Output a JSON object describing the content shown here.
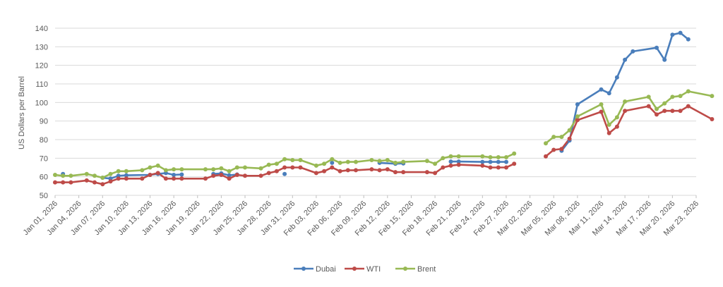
{
  "chart_data": {
    "type": "line",
    "title": "",
    "xlabel": "",
    "ylabel": "US Dollars per Barrel",
    "ylim": [
      50,
      140
    ],
    "yticks": [
      50,
      60,
      70,
      80,
      90,
      100,
      110,
      120,
      130,
      140
    ],
    "xlim": [
      "2026-01-01",
      "2026-03-23"
    ],
    "xtick_labels": [
      "Jan 01, 2026",
      "Jan 04, 2026",
      "Jan 07, 2026",
      "Jan 10, 2026",
      "Jan 13, 2026",
      "Jan 16, 2026",
      "Jan 19, 2026",
      "Jan 22, 2026",
      "Jan 25, 2026",
      "Jan 28, 2026",
      "Jan 31, 2026",
      "Feb 03, 2026",
      "Feb 06, 2026",
      "Feb 09, 2026",
      "Feb 12, 2026",
      "Feb 15, 2026",
      "Feb 18, 2026",
      "Feb 21, 2026",
      "Feb 24, 2026",
      "Feb 27, 2026",
      "Mar 02, 2026",
      "Mar 05, 2026",
      "Mar 08, 2026",
      "Mar 11, 2026",
      "Mar 14, 2026",
      "Mar 17, 2026",
      "Mar 20, 2026",
      "Mar 23, 2026"
    ],
    "grid": "horizontal",
    "legend_position": "bottom",
    "series": [
      {
        "name": "Dubai",
        "color": "#4a7ebb",
        "points": [
          [
            "2026-01-02",
            61.5
          ],
          [
            "2026-01-07",
            59.5
          ],
          [
            "2026-01-08",
            59.0
          ],
          [
            "2026-01-09",
            60.5
          ],
          [
            "2026-01-10",
            60.8
          ],
          [
            "2026-01-13",
            61.0
          ],
          [
            "2026-01-14",
            61.5
          ],
          [
            "2026-01-15",
            62.0
          ],
          [
            "2026-01-16",
            61.0
          ],
          [
            "2026-01-17",
            61.2
          ],
          [
            "2026-01-21",
            61.5
          ],
          [
            "2026-01-22",
            61.8
          ],
          [
            "2026-01-23",
            60.8
          ],
          [
            "2026-01-24",
            61.2
          ],
          [
            "2026-01-30",
            61.5
          ],
          [
            "2026-02-05",
            67.5
          ],
          [
            "2026-02-11",
            67.5
          ],
          [
            "2026-02-13",
            67.0
          ],
          [
            "2026-02-14",
            67.2
          ],
          [
            "2026-02-20",
            68.2
          ],
          [
            "2026-02-21",
            68.2
          ],
          [
            "2026-02-24",
            68.0
          ],
          [
            "2026-02-25",
            68.0
          ],
          [
            "2026-02-26",
            68.0
          ],
          [
            "2026-02-27",
            68.0
          ],
          [
            "2026-03-06",
            74.0
          ],
          [
            "2026-03-07",
            79.5
          ],
          [
            "2026-03-08",
            99.0
          ],
          [
            "2026-03-11",
            107.0
          ],
          [
            "2026-03-12",
            105.0
          ],
          [
            "2026-03-13",
            113.5
          ],
          [
            "2026-03-14",
            123.0
          ],
          [
            "2026-03-15",
            127.5
          ],
          [
            "2026-03-18",
            129.5
          ],
          [
            "2026-03-19",
            123.0
          ],
          [
            "2026-03-20",
            136.5
          ],
          [
            "2026-03-21",
            137.5
          ],
          [
            "2026-03-22",
            134.0
          ]
        ]
      },
      {
        "name": "WTI",
        "color": "#be4b48",
        "points": [
          [
            "2026-01-01",
            57.0
          ],
          [
            "2026-01-02",
            57.0
          ],
          [
            "2026-01-03",
            57.0
          ],
          [
            "2026-01-05",
            58.0
          ],
          [
            "2026-01-06",
            57.0
          ],
          [
            "2026-01-07",
            56.0
          ],
          [
            "2026-01-08",
            57.5
          ],
          [
            "2026-01-09",
            59.0
          ],
          [
            "2026-01-10",
            59.0
          ],
          [
            "2026-01-12",
            59.0
          ],
          [
            "2026-01-13",
            61.0
          ],
          [
            "2026-01-14",
            62.0
          ],
          [
            "2026-01-15",
            59.0
          ],
          [
            "2026-01-16",
            59.0
          ],
          [
            "2026-01-17",
            59.0
          ],
          [
            "2026-01-20",
            59.0
          ],
          [
            "2026-01-21",
            60.5
          ],
          [
            "2026-01-22",
            61.0
          ],
          [
            "2026-01-23",
            59.0
          ],
          [
            "2026-01-24",
            61.0
          ],
          [
            "2026-01-25",
            60.5
          ],
          [
            "2026-01-27",
            60.5
          ],
          [
            "2026-01-28",
            62.0
          ],
          [
            "2026-01-29",
            63.0
          ],
          [
            "2026-01-30",
            65.0
          ],
          [
            "2026-01-31",
            65.0
          ],
          [
            "2026-02-01",
            65.0
          ],
          [
            "2026-02-03",
            62.0
          ],
          [
            "2026-02-04",
            63.0
          ],
          [
            "2026-02-05",
            65.0
          ],
          [
            "2026-02-06",
            63.0
          ],
          [
            "2026-02-07",
            63.5
          ],
          [
            "2026-02-08",
            63.5
          ],
          [
            "2026-02-10",
            64.0
          ],
          [
            "2026-02-11",
            63.5
          ],
          [
            "2026-02-12",
            64.0
          ],
          [
            "2026-02-13",
            62.5
          ],
          [
            "2026-02-14",
            62.5
          ],
          [
            "2026-02-17",
            62.5
          ],
          [
            "2026-02-18",
            62.0
          ],
          [
            "2026-02-19",
            65.0
          ],
          [
            "2026-02-20",
            66.0
          ],
          [
            "2026-02-21",
            66.5
          ],
          [
            "2026-02-24",
            66.0
          ],
          [
            "2026-02-25",
            65.0
          ],
          [
            "2026-02-26",
            65.0
          ],
          [
            "2026-02-27",
            65.0
          ],
          [
            "2026-02-28",
            67.0
          ],
          [
            "2026-03-04",
            71.0
          ],
          [
            "2026-03-05",
            74.5
          ],
          [
            "2026-03-06",
            75.0
          ],
          [
            "2026-03-07",
            80.5
          ],
          [
            "2026-03-08",
            90.5
          ],
          [
            "2026-03-11",
            95.0
          ],
          [
            "2026-03-12",
            83.5
          ],
          [
            "2026-03-13",
            87.0
          ],
          [
            "2026-03-14",
            95.5
          ],
          [
            "2026-03-17",
            98.0
          ],
          [
            "2026-03-18",
            93.5
          ],
          [
            "2026-03-19",
            95.5
          ],
          [
            "2026-03-20",
            95.5
          ],
          [
            "2026-03-21",
            95.5
          ],
          [
            "2026-03-22",
            98.0
          ],
          [
            "2026-03-25",
            91.0
          ]
        ]
      },
      {
        "name": "Brent",
        "color": "#98b954",
        "points": [
          [
            "2026-01-01",
            61.0
          ],
          [
            "2026-01-02",
            60.5
          ],
          [
            "2026-01-03",
            60.5
          ],
          [
            "2026-01-05",
            61.5
          ],
          [
            "2026-01-06",
            60.5
          ],
          [
            "2026-01-07",
            59.5
          ],
          [
            "2026-01-08",
            61.5
          ],
          [
            "2026-01-09",
            63.0
          ],
          [
            "2026-01-10",
            63.0
          ],
          [
            "2026-01-12",
            63.5
          ],
          [
            "2026-01-13",
            65.0
          ],
          [
            "2026-01-14",
            66.0
          ],
          [
            "2026-01-15",
            63.5
          ],
          [
            "2026-01-16",
            64.0
          ],
          [
            "2026-01-17",
            64.0
          ],
          [
            "2026-01-20",
            64.0
          ],
          [
            "2026-01-21",
            64.0
          ],
          [
            "2026-01-22",
            64.5
          ],
          [
            "2026-01-23",
            63.0
          ],
          [
            "2026-01-24",
            65.0
          ],
          [
            "2026-01-25",
            65.0
          ],
          [
            "2026-01-27",
            64.5
          ],
          [
            "2026-01-28",
            66.5
          ],
          [
            "2026-01-29",
            67.0
          ],
          [
            "2026-01-30",
            69.5
          ],
          [
            "2026-01-31",
            69.0
          ],
          [
            "2026-02-01",
            69.0
          ],
          [
            "2026-02-03",
            66.0
          ],
          [
            "2026-02-04",
            67.0
          ],
          [
            "2026-02-05",
            69.5
          ],
          [
            "2026-02-06",
            67.5
          ],
          [
            "2026-02-07",
            68.0
          ],
          [
            "2026-02-08",
            68.0
          ],
          [
            "2026-02-10",
            69.0
          ],
          [
            "2026-02-11",
            68.5
          ],
          [
            "2026-02-12",
            69.0
          ],
          [
            "2026-02-13",
            67.5
          ],
          [
            "2026-02-14",
            68.0
          ],
          [
            "2026-02-17",
            68.5
          ],
          [
            "2026-02-18",
            67.0
          ],
          [
            "2026-02-19",
            70.0
          ],
          [
            "2026-02-20",
            71.0
          ],
          [
            "2026-02-21",
            71.0
          ],
          [
            "2026-02-24",
            71.0
          ],
          [
            "2026-02-25",
            70.5
          ],
          [
            "2026-02-26",
            70.5
          ],
          [
            "2026-02-27",
            70.5
          ],
          [
            "2026-02-28",
            72.5
          ],
          [
            "2026-03-04",
            78.0
          ],
          [
            "2026-03-05",
            81.5
          ],
          [
            "2026-03-06",
            81.5
          ],
          [
            "2026-03-07",
            85.0
          ],
          [
            "2026-03-08",
            92.5
          ],
          [
            "2026-03-11",
            99.0
          ],
          [
            "2026-03-12",
            88.0
          ],
          [
            "2026-03-13",
            92.0
          ],
          [
            "2026-03-14",
            100.5
          ],
          [
            "2026-03-17",
            103.0
          ],
          [
            "2026-03-18",
            96.5
          ],
          [
            "2026-03-19",
            99.5
          ],
          [
            "2026-03-20",
            103.0
          ],
          [
            "2026-03-21",
            103.5
          ],
          [
            "2026-03-22",
            106.0
          ],
          [
            "2026-03-25",
            103.5
          ]
        ]
      }
    ]
  }
}
